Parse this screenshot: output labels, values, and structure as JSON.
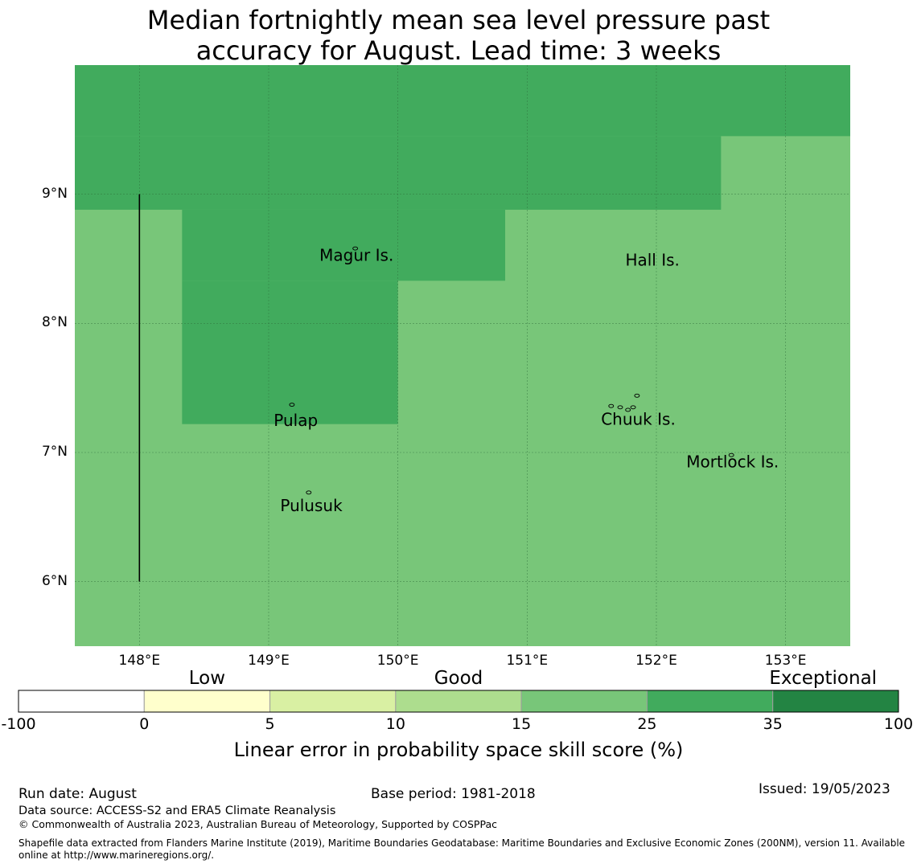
{
  "title_lines": [
    "Median fortnightly mean sea level pressure past",
    "accuracy for August. Lead time: 3 weeks"
  ],
  "map": {
    "lon_range": [
      147.5,
      153.5
    ],
    "lat_range": [
      5.5,
      10.0
    ],
    "lon_ticks": [
      {
        "lon": 148,
        "label": "148°E"
      },
      {
        "lon": 149,
        "label": "149°E"
      },
      {
        "lon": 150,
        "label": "150°E"
      },
      {
        "lon": 151,
        "label": "151°E"
      },
      {
        "lon": 152,
        "label": "152°E"
      },
      {
        "lon": 153,
        "label": "153°E"
      }
    ],
    "lat_ticks": [
      {
        "lat": 9,
        "label": "9°N"
      },
      {
        "lat": 8,
        "label": "8°N"
      },
      {
        "lat": 7,
        "label": "7°N"
      },
      {
        "lat": 6,
        "label": "6°N"
      }
    ],
    "gridlines": true,
    "regions": [
      {
        "category": "25-35",
        "color": "#41ab5d",
        "lon": [
          147.5,
          153.5
        ],
        "lat": [
          9.45,
          10.0
        ]
      },
      {
        "category": "25-35",
        "color": "#41ab5d",
        "lon": [
          147.5,
          152.5
        ],
        "lat": [
          8.88,
          9.45
        ]
      },
      {
        "category": "25-35",
        "color": "#41ab5d",
        "lon": [
          148.33,
          150.83
        ],
        "lat": [
          8.33,
          8.88
        ]
      },
      {
        "category": "25-35",
        "color": "#41ab5d",
        "lon": [
          148.33,
          150.0
        ],
        "lat": [
          7.22,
          8.33
        ]
      }
    ],
    "background": {
      "category": "15-25",
      "color": "#78c679"
    },
    "boundary_line": {
      "lon": 148,
      "lat": [
        6.0,
        9.0
      ]
    },
    "places": [
      {
        "name": "Magur Is.",
        "lon": 149.68,
        "lat": 8.52
      },
      {
        "name": "Hall Is.",
        "lon": 151.97,
        "lat": 8.48
      },
      {
        "name": "Pulap",
        "lon": 149.21,
        "lat": 7.24
      },
      {
        "name": "Chuuk Is.",
        "lon": 151.86,
        "lat": 7.25
      },
      {
        "name": "Mortlock Is.",
        "lon": 152.59,
        "lat": 6.92
      },
      {
        "name": "Pulusuk",
        "lon": 149.33,
        "lat": 6.58
      }
    ],
    "islands": [
      {
        "lon": 149.67,
        "lat": 8.58
      },
      {
        "lon": 149.18,
        "lat": 7.37
      },
      {
        "lon": 149.31,
        "lat": 6.69
      },
      {
        "lon": 151.85,
        "lat": 7.44
      },
      {
        "lon": 151.82,
        "lat": 7.35
      },
      {
        "lon": 151.65,
        "lat": 7.36
      },
      {
        "lon": 151.72,
        "lat": 7.35
      },
      {
        "lon": 151.78,
        "lat": 7.33
      },
      {
        "lon": 152.58,
        "lat": 6.98
      }
    ]
  },
  "colorbar": {
    "categories": [
      {
        "label": "Low",
        "center_index": 1.5
      },
      {
        "label": "Good",
        "center_index": 3.5
      },
      {
        "label": "Exceptional",
        "center_index": 6.4
      }
    ],
    "colors": [
      "#ffffff",
      "#ffffcc",
      "#d9f0a3",
      "#addd8e",
      "#78c679",
      "#41ab5d",
      "#238443"
    ],
    "ticks": [
      "-100",
      "0",
      "5",
      "10",
      "15",
      "25",
      "35",
      "100"
    ],
    "title": "Linear error in probability space skill score (%)"
  },
  "footer": {
    "run_date": "Run date: August",
    "base_period": "Base period: 1981-2018",
    "issued": "Issued: 19/05/2023",
    "data_source": "Data source: ACCESS-S2 and ERA5 Climate Reanalysis",
    "copyright": "© Commonwealth of Australia 2023, Australian Bureau of Meteorology, Supported by COSPPac",
    "shapefile_line1": "Shapefile data extracted from Flanders Marine Institute (2019), Maritime Boundaries Geodatabase: Maritime Boundaries and Exclusive Economic Zones (200NM), version 11. Available",
    "shapefile_line2": "online at http://www.marineregions.org/."
  }
}
